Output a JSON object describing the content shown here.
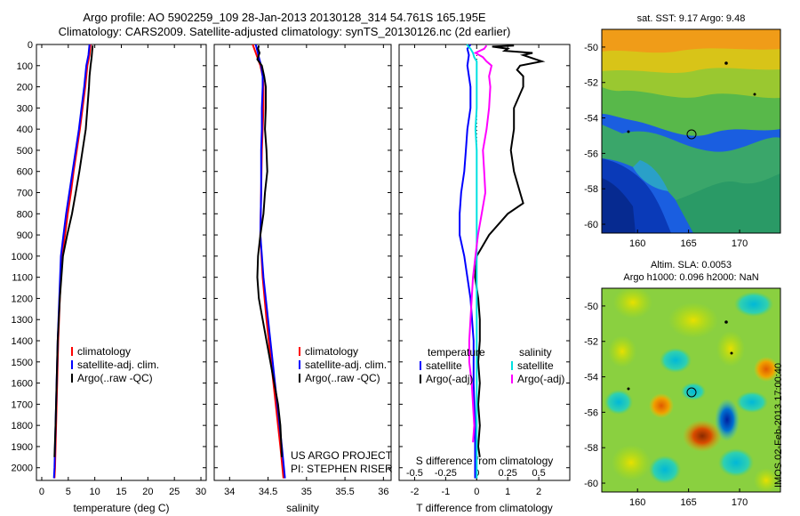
{
  "header": {
    "title_line1": "Argo profile: AO 5902259_109 28-Jan-2013 20130128_314 54.761S 165.195E",
    "title_line2": "Climatology: CARS2009. Satellite-adjusted climatology: synTS_20130126.nc (2d earlier)"
  },
  "chart_data": [
    {
      "type": "line",
      "xlabel": "temperature (deg C)",
      "xlim": [
        -1,
        31
      ],
      "xticks": [
        0,
        5,
        10,
        15,
        20,
        25,
        30
      ],
      "ylim": [
        0,
        2060
      ],
      "yticks": [
        0,
        100,
        200,
        300,
        400,
        500,
        600,
        700,
        800,
        900,
        1000,
        1100,
        1200,
        1300,
        1400,
        1500,
        1600,
        1700,
        1800,
        1900,
        2000
      ],
      "legend": [
        "climatology",
        "satellite-adj. clim.",
        "Argo(..raw -QC)"
      ],
      "legend_colors": [
        "#ff0000",
        "#0000ff",
        "#000000"
      ],
      "series": [
        {
          "name": "climatology",
          "color": "#ff0000",
          "depth": [
            0,
            50,
            100,
            200,
            300,
            400,
            500,
            600,
            700,
            800,
            900,
            1000,
            1200,
            1400,
            1600,
            1800,
            2000,
            2050
          ],
          "values": [
            9.2,
            9.0,
            8.6,
            8.2,
            7.7,
            7.2,
            6.6,
            6.0,
            5.5,
            4.9,
            4.4,
            3.8,
            3.4,
            3.1,
            2.9,
            2.7,
            2.5,
            2.4
          ]
        },
        {
          "name": "satellite-adj. clim.",
          "color": "#0000ff",
          "depth": [
            0,
            50,
            100,
            200,
            300,
            400,
            500,
            600,
            700,
            800,
            900,
            1000,
            1200,
            1400,
            1600,
            1800,
            2000,
            2050
          ],
          "values": [
            9.0,
            8.8,
            8.4,
            8.0,
            7.5,
            7.0,
            6.4,
            5.8,
            5.2,
            4.6,
            4.1,
            3.6,
            3.3,
            3.0,
            2.8,
            2.6,
            2.4,
            2.3
          ]
        },
        {
          "name": "Argo(..raw -QC)",
          "color": "#000000",
          "depth": [
            5,
            30,
            60,
            100,
            150,
            200,
            300,
            400,
            500,
            600,
            700,
            800,
            900,
            1000,
            1200,
            1400,
            1600,
            1800,
            1950
          ],
          "values": [
            9.6,
            9.5,
            9.4,
            9.2,
            9.0,
            8.9,
            8.6,
            8.3,
            7.7,
            7.1,
            6.4,
            5.7,
            4.8,
            4.0,
            3.4,
            3.0,
            2.8,
            2.6,
            2.4
          ]
        }
      ]
    },
    {
      "type": "line",
      "xlabel": "salinity",
      "xlim": [
        33.8,
        36.1
      ],
      "xticks": [
        34,
        34.5,
        35,
        35.5,
        36
      ],
      "legend": [
        "climatology",
        "satellite-adj. clim.",
        "Argo(..raw -QC)"
      ],
      "legend_colors": [
        "#ff0000",
        "#0000ff",
        "#000000"
      ],
      "annotation": [
        "US ARGO PROJECT",
        "PI: STEPHEN RISER"
      ],
      "series": [
        {
          "name": "climatology",
          "color": "#ff0000",
          "depth": [
            0,
            30,
            60,
            100,
            150,
            200,
            300,
            400,
            500,
            700,
            900,
            1100,
            1300,
            1500,
            1700,
            1900,
            2050
          ],
          "values": [
            34.3,
            34.33,
            34.36,
            34.4,
            34.43,
            34.44,
            34.44,
            34.43,
            34.42,
            34.41,
            34.4,
            34.43,
            34.48,
            34.54,
            34.6,
            34.66,
            34.7
          ]
        },
        {
          "name": "satellite-adj. clim.",
          "color": "#0000ff",
          "depth": [
            0,
            30,
            60,
            100,
            150,
            200,
            300,
            400,
            500,
            700,
            900,
            1100,
            1300,
            1500,
            1700,
            1900,
            2050
          ],
          "values": [
            34.34,
            34.36,
            34.38,
            34.41,
            34.43,
            34.43,
            34.42,
            34.42,
            34.41,
            34.41,
            34.4,
            34.44,
            34.5,
            34.56,
            34.62,
            34.68,
            34.72
          ]
        },
        {
          "name": "Argo(..raw -QC)",
          "color": "#000000",
          "depth": [
            5,
            20,
            40,
            70,
            100,
            150,
            200,
            300,
            400,
            500,
            600,
            700,
            800,
            900,
            1000,
            1100,
            1200,
            1300,
            1400,
            1500,
            1600,
            1700,
            1800,
            1950
          ],
          "values": [
            34.38,
            34.37,
            34.39,
            34.36,
            34.42,
            34.45,
            34.47,
            34.47,
            34.46,
            34.48,
            34.49,
            34.46,
            34.44,
            34.4,
            34.37,
            34.36,
            34.38,
            34.43,
            34.48,
            34.53,
            34.58,
            34.63,
            34.66,
            34.68
          ]
        }
      ]
    },
    {
      "type": "line",
      "xlabel": "T difference from climatology",
      "xlim": [
        -2.5,
        3.0
      ],
      "xticks": [
        -2,
        -1,
        0,
        1,
        2
      ],
      "xtick_labels": [
        "-2",
        "-1",
        "0",
        "1",
        "2"
      ],
      "secondary_xlabel": "S difference from climatology",
      "secondary_xticks": [
        -0.5,
        -0.25,
        0,
        0.25,
        0.5
      ],
      "secondary_xtick_labels": [
        "-0.5",
        "-0.25",
        "0",
        "0.25",
        "0.5"
      ],
      "legend_headers": [
        "temperature",
        "salinity"
      ],
      "legend": [
        "satellite",
        "Argo(-adj)",
        "satellite",
        "Argo(-adj)"
      ],
      "legend_colors": [
        "#0000ff",
        "#000000",
        "#00e0e0",
        "#ff00ff"
      ],
      "series": [
        {
          "name": "temperature satellite",
          "color": "#0000ff",
          "depth": [
            0,
            20,
            50,
            100,
            200,
            300,
            400,
            500,
            600,
            700,
            800,
            900,
            1000,
            1100,
            1200,
            1400,
            1600,
            1800,
            2050
          ],
          "values": [
            -0.2,
            -0.3,
            -0.25,
            -0.3,
            -0.2,
            -0.2,
            -0.3,
            -0.35,
            -0.4,
            -0.5,
            -0.55,
            -0.55,
            -0.4,
            -0.3,
            -0.2,
            -0.1,
            -0.1,
            -0.05,
            -0.05
          ]
        },
        {
          "name": "temperature Argo(-adj)",
          "color": "#000000",
          "depth": [
            5,
            10,
            20,
            30,
            40,
            50,
            60,
            80,
            100,
            120,
            150,
            200,
            300,
            400,
            500,
            600,
            700,
            750,
            800,
            900,
            1000,
            1100,
            1200,
            1300,
            1400,
            1500,
            1600,
            1700,
            1800,
            1900,
            1950
          ],
          "values": [
            1.2,
            0.5,
            1.0,
            0.9,
            1.8,
            1.5,
            1.7,
            2.1,
            1.4,
            1.3,
            1.5,
            1.5,
            1.2,
            1.2,
            1.1,
            1.2,
            1.4,
            1.5,
            1.0,
            0.4,
            0.0,
            -0.05,
            0.05,
            0.1,
            0.1,
            0.05,
            0.1,
            0.05,
            0.1,
            0.05,
            0.1
          ]
        },
        {
          "name": "salinity satellite",
          "color": "#00e0e0",
          "depth": [
            0,
            20,
            40,
            60,
            80,
            100,
            150,
            200,
            300,
            400,
            500,
            600,
            800,
            1000,
            1200,
            1400,
            1600,
            1800,
            2000,
            2050
          ],
          "values": [
            -0.08,
            -0.05,
            -0.03,
            -0.02,
            0.0,
            0.0,
            0.0,
            0.0,
            0.0,
            -0.01,
            0.0,
            0.0,
            0.0,
            0.0,
            0.0,
            0.0,
            0.0,
            0.0,
            0.0,
            0.0
          ]
        },
        {
          "name": "salinity Argo(-adj)",
          "color": "#ff00ff",
          "depth": [
            5,
            20,
            40,
            60,
            80,
            100,
            150,
            200,
            300,
            400,
            500,
            600,
            700,
            800,
            900,
            1000,
            1100,
            1200,
            1300,
            1400,
            1500,
            1600,
            1700,
            1800,
            1880
          ],
          "values": [
            0.08,
            0.06,
            -0.01,
            0.05,
            0.08,
            0.12,
            0.1,
            0.11,
            0.1,
            0.08,
            0.05,
            0.06,
            0.07,
            0.04,
            0.01,
            -0.01,
            -0.03,
            -0.04,
            -0.05,
            -0.06,
            -0.06,
            -0.04,
            -0.03,
            -0.02,
            -0.03
          ]
        }
      ]
    },
    {
      "type": "heatmap",
      "title": "sat. SST: 9.17 Argo: 9.48",
      "xticks": [
        160,
        165,
        170
      ],
      "yticks": [
        -50,
        -52,
        -54,
        -56,
        -58,
        -60
      ],
      "xlim": [
        156.5,
        174
      ],
      "ylim": [
        -60.5,
        -49
      ]
    },
    {
      "type": "heatmap",
      "title_line1": "Altim. SLA: 0.0053",
      "title_line2": "Argo h1000: 0.096 h2000: NaN",
      "xticks": [
        160,
        165,
        170
      ],
      "yticks": [
        -50,
        -52,
        -54,
        -56,
        -58,
        -60
      ],
      "xlim": [
        156.5,
        174
      ],
      "ylim": [
        -60.5,
        -49
      ]
    }
  ],
  "footer": {
    "stamp": "IMOS 02-Feb-2013 17:00:40"
  }
}
